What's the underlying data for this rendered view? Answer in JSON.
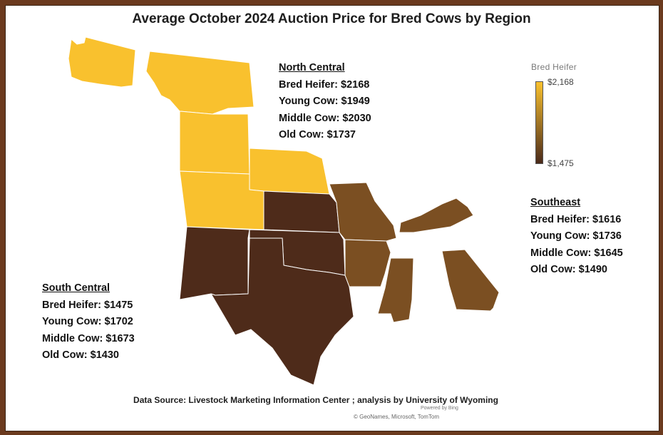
{
  "title": "Average October 2024 Auction Price for Bred Cows by Region",
  "legend": {
    "title": "Bred Heifer",
    "max_label": "$2,168",
    "min_label": "$1,475",
    "color_high": "#f9c12e",
    "color_low": "#4a2a1a"
  },
  "regions": [
    {
      "name": "North Central",
      "lines": [
        "Bred Heifer: $2168",
        "Young Cow: $1949",
        "Middle Cow: $2030",
        "Old Cow: $1737"
      ],
      "color": "#f9c12e",
      "states": [
        "WA",
        "MT",
        "WY",
        "CO",
        "NE"
      ]
    },
    {
      "name": "South Central",
      "lines": [
        "Bred Heifer: $1475",
        "Young Cow: $1702",
        "Middle Cow: $1673",
        "Old Cow: $1430"
      ],
      "color": "#4e2b1a",
      "states": [
        "KS",
        "NM",
        "OK",
        "TX"
      ]
    },
    {
      "name": "Southeast",
      "lines": [
        "Bred Heifer: $1616",
        "Young Cow: $1736",
        "Middle Cow: $1645",
        "Old Cow: $1490"
      ],
      "color": "#7b4f22",
      "states": [
        "MO",
        "AR",
        "KY",
        "MS",
        "GA"
      ]
    }
  ],
  "source": "Data Source: Livestock Marketing Information Center ; analysis by University of Wyoming",
  "powered_by": "Powered by Bing",
  "credit": "© GeoNames, Microsoft, TomTom"
}
